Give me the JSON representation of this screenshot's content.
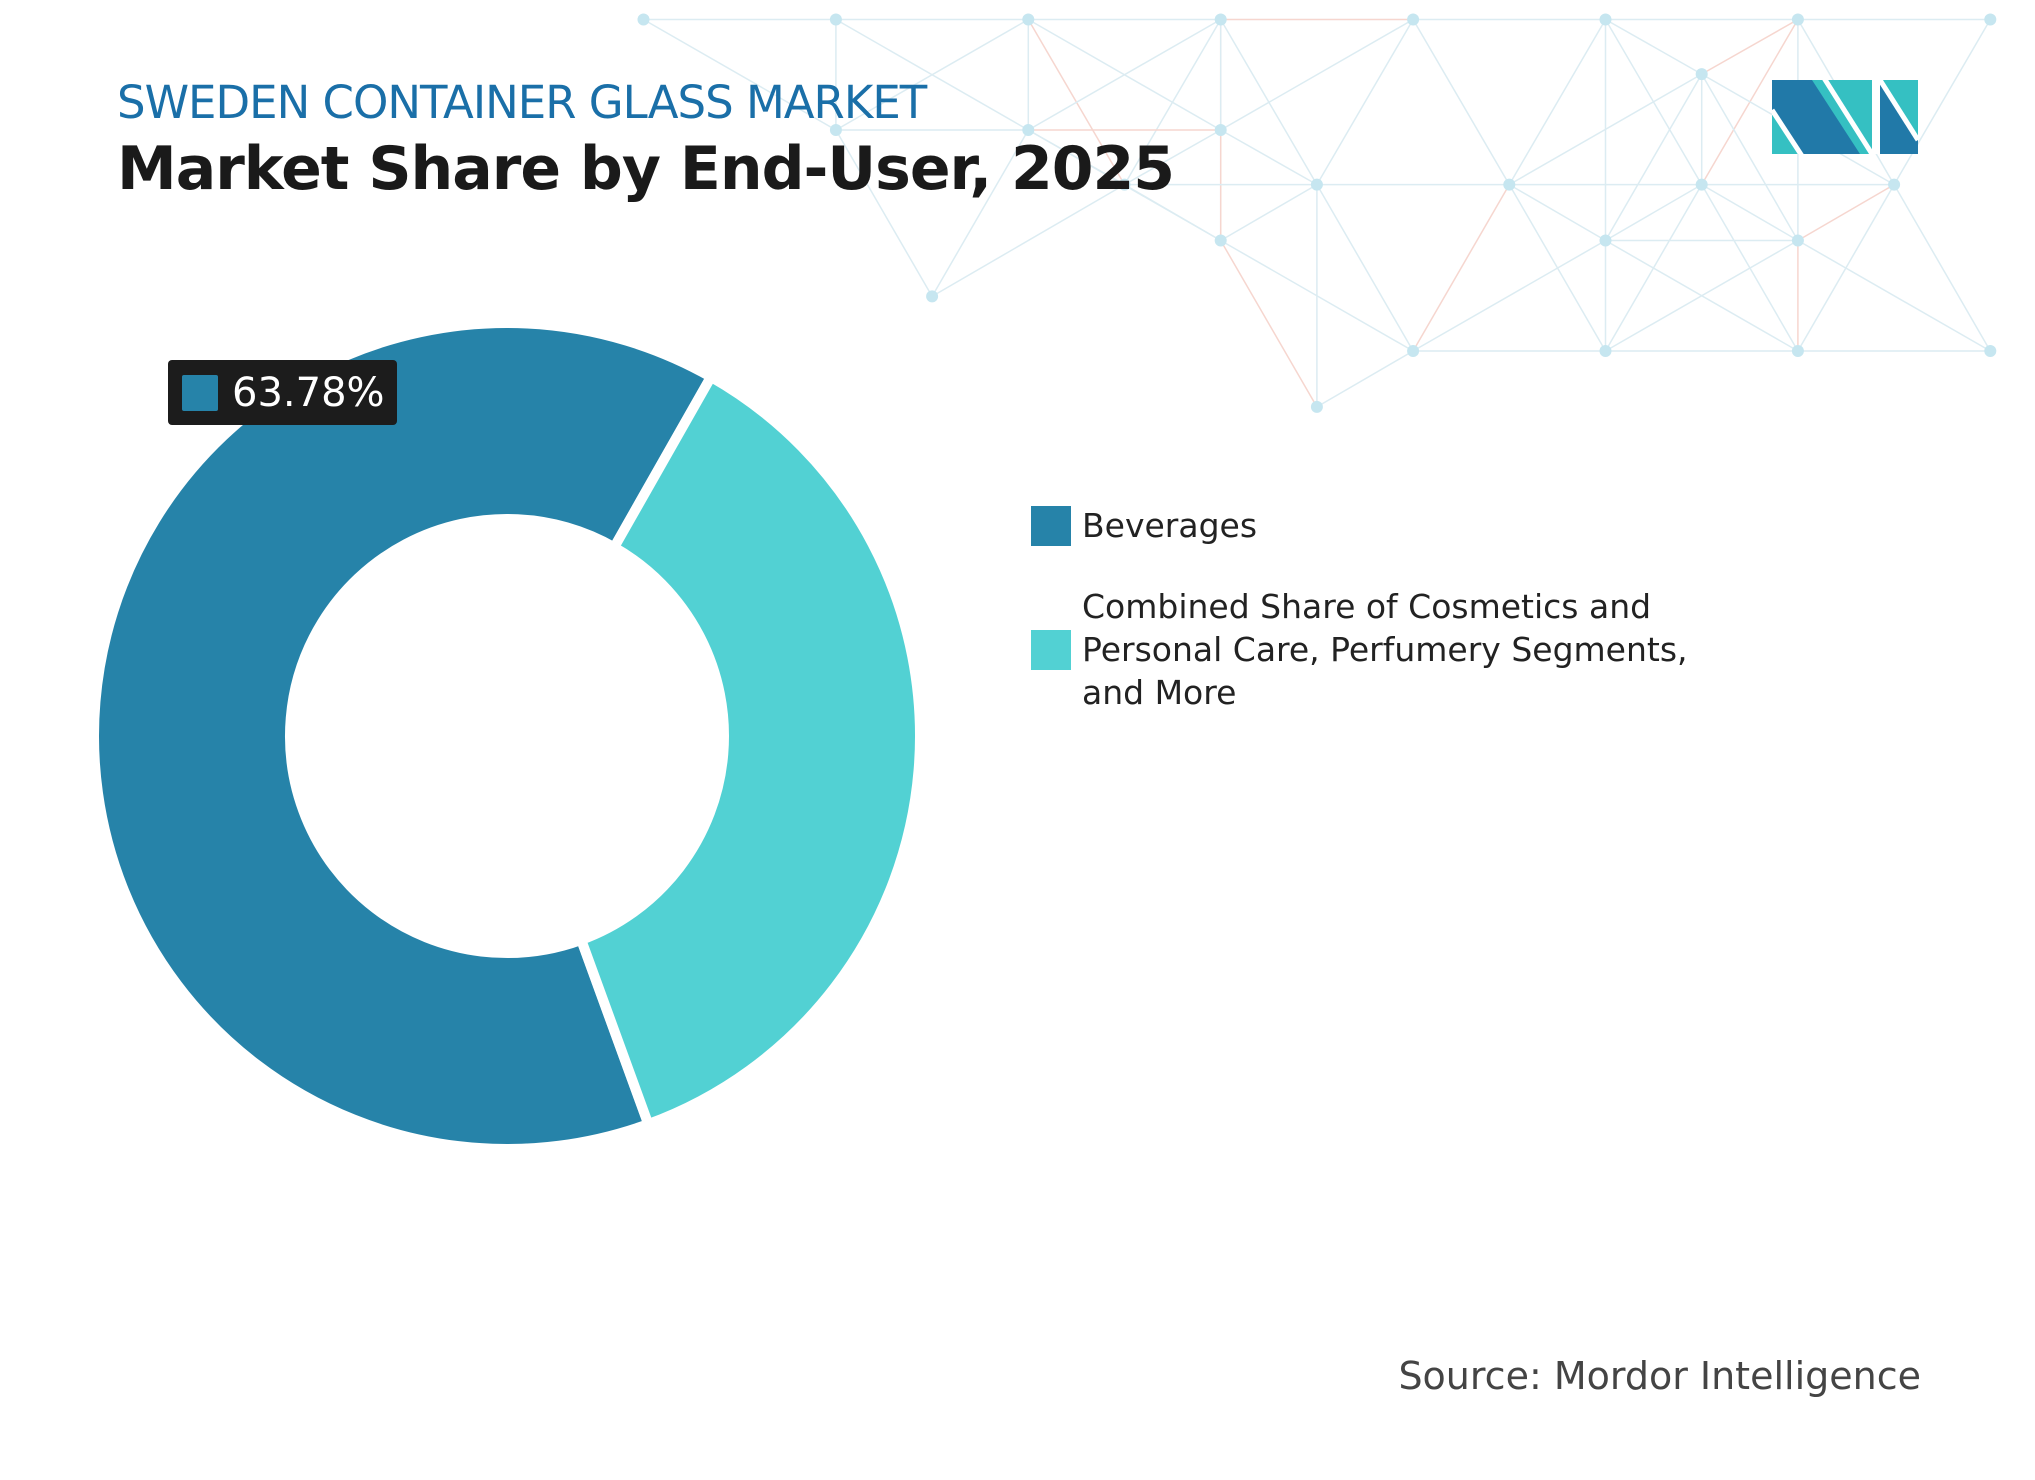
{
  "header": {
    "subtitle": "SWEDEN CONTAINER GLASS MARKET",
    "title": "Market Share by End-User, 2025"
  },
  "logo": {
    "text": "MI",
    "colors": [
      "#2179a8",
      "#35c0c2"
    ]
  },
  "chart_data": {
    "type": "pie",
    "variant": "donut",
    "title": "Market Share by End-User, 2025",
    "categories": [
      "Beverages",
      "Combined Share of Cosmetics and Personal Care, Perfumery Segments, and More"
    ],
    "values": [
      63.78,
      36.22
    ],
    "unit": "%",
    "colors": [
      "#2683a9",
      "#52d1d3"
    ],
    "data_labels": [
      {
        "category": "Beverages",
        "text": "63.78%"
      }
    ],
    "legend": {
      "placement": "right"
    }
  },
  "source": "Source: Mordor Intelligence"
}
